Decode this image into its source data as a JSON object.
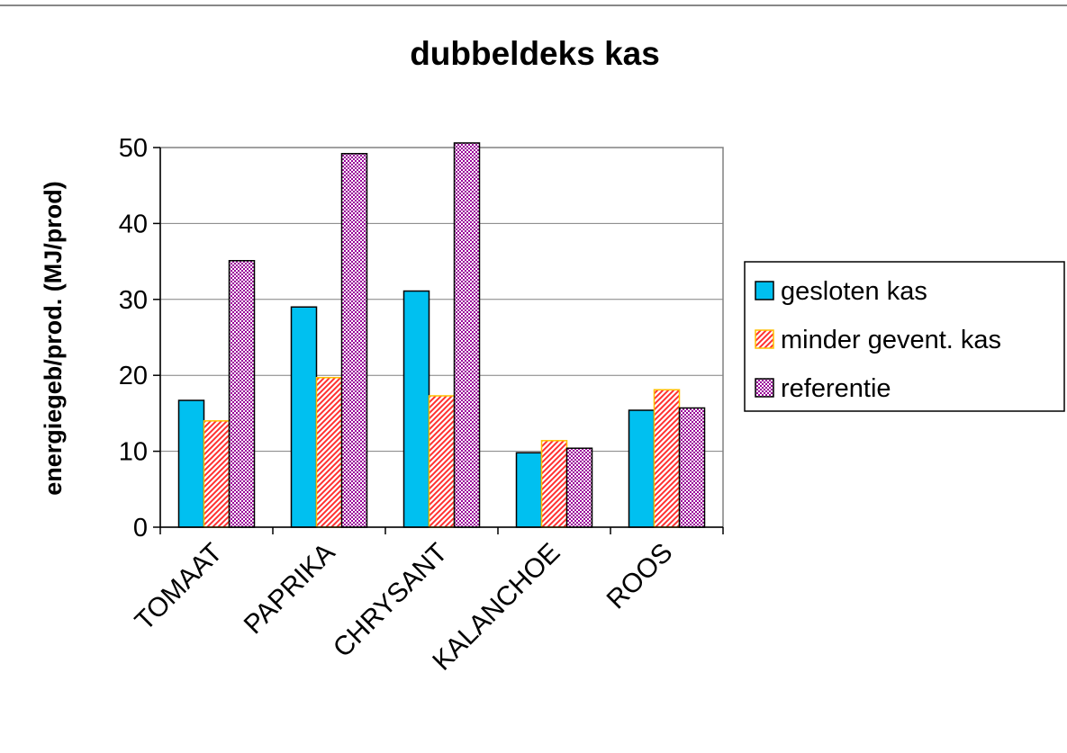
{
  "chart_data": {
    "type": "bar",
    "title": "dubbeldeks kas",
    "xlabel": "",
    "ylabel": "energiegeb/prod. (MJ/prod)",
    "ylim": [
      0,
      50
    ],
    "yticks": [
      0,
      10,
      20,
      30,
      40,
      50
    ],
    "grid": true,
    "legend_position": "right",
    "categories": [
      "TOMAAT",
      "PAPRIKA",
      "CHRYSANT",
      "KALANCHOE",
      "ROOS"
    ],
    "series": [
      {
        "name": "gesloten kas",
        "values": [
          16.7,
          29.0,
          31.1,
          9.8,
          15.4
        ],
        "color": "#00c0f0",
        "pattern": "solid"
      },
      {
        "name": "minder gevent. kas",
        "values": [
          14.0,
          19.7,
          17.3,
          11.4,
          18.1
        ],
        "color": "#ff4040",
        "pattern": "diagonal-hatch"
      },
      {
        "name": "referentie",
        "values": [
          35.1,
          49.2,
          50.6,
          10.4,
          15.7
        ],
        "color": "#990099",
        "pattern": "checker"
      }
    ]
  }
}
